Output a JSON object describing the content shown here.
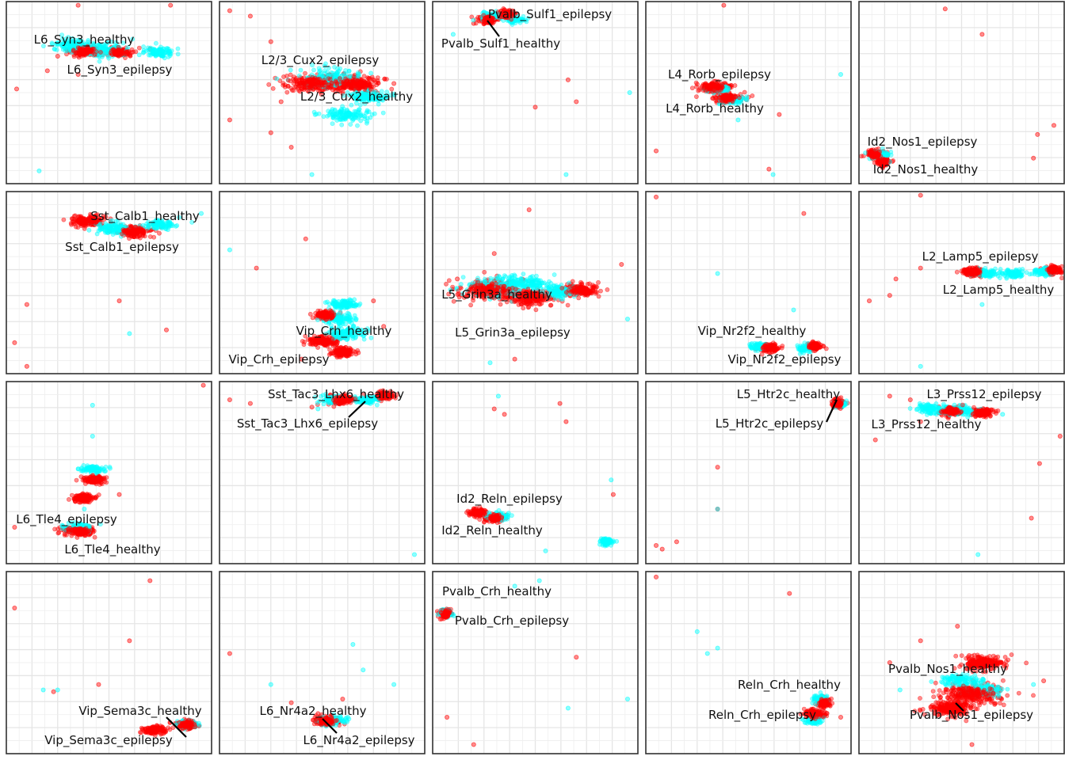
{
  "chart_data": {
    "type": "scatter",
    "layout": "4x5 facet grid, no axes text, light grid",
    "grid": true,
    "legend": "none",
    "colors": {
      "healthy": "#00ffff",
      "epilepsy": "#ff0000"
    },
    "panels": [
      {
        "labels": {
          "healthy": "L6_Syn3_healthy",
          "epilepsy": "L6_Syn3_epilepsy"
        },
        "healthy": [
          [
            0.32,
            0.76,
            0.08
          ],
          [
            0.48,
            0.74,
            0.1
          ],
          [
            0.75,
            0.72,
            0.06
          ],
          [
            0.16,
            0.07
          ]
        ],
        "epilepsy": [
          [
            0.38,
            0.73,
            0.07
          ],
          [
            0.55,
            0.72,
            0.06
          ],
          [
            0.2,
            0.62
          ],
          [
            0.35,
            0.6
          ],
          [
            0.8,
            0.98
          ],
          [
            0.35,
            0.98
          ],
          [
            0.05,
            0.52
          ],
          [
            0.7,
            0.74
          ],
          [
            0.25,
            0.7
          ]
        ]
      },
      {
        "labels": {
          "healthy": "L2/3_Cux2_healthy",
          "epilepsy": "L2/3_Cux2_epilepsy"
        },
        "healthy": [
          [
            0.55,
            0.58,
            0.12
          ],
          [
            0.72,
            0.48,
            0.08
          ],
          [
            0.62,
            0.38,
            0.1
          ],
          [
            0.45,
            0.05
          ]
        ],
        "epilepsy": [
          [
            0.45,
            0.55,
            0.12
          ],
          [
            0.65,
            0.55,
            0.12
          ],
          [
            0.3,
            0.45
          ],
          [
            0.25,
            0.28
          ],
          [
            0.05,
            0.35
          ],
          [
            0.35,
            0.2
          ],
          [
            0.05,
            0.95
          ],
          [
            0.15,
            0.92
          ],
          [
            0.85,
            0.55
          ],
          [
            0.25,
            0.78
          ]
        ]
      },
      {
        "labels": {
          "healthy": "Pvalb_Sulf1_healthy",
          "epilepsy": "Pvalb_Sulf1_epilepsy"
        },
        "healthy": [
          [
            0.3,
            0.92,
            0.05
          ],
          [
            0.4,
            0.9,
            0.04
          ],
          [
            0.96,
            0.5
          ],
          [
            0.65,
            0.05
          ],
          [
            0.1,
            0.82
          ]
        ],
        "epilepsy": [
          [
            0.27,
            0.9,
            0.04
          ],
          [
            0.36,
            0.93,
            0.04
          ],
          [
            0.5,
            0.42
          ],
          [
            0.7,
            0.45
          ],
          [
            0.66,
            0.57
          ],
          [
            0.2,
            0.88
          ]
        ]
      },
      {
        "labels": {
          "healthy": "L4_Rorb_healthy",
          "epilepsy": "L4_Rorb_epilepsy"
        },
        "healthy": [
          [
            0.35,
            0.52,
            0.05
          ],
          [
            0.42,
            0.46,
            0.05
          ],
          [
            0.95,
            0.6
          ],
          [
            0.62,
            0.05
          ],
          [
            0.45,
            0.35
          ]
        ],
        "epilepsy": [
          [
            0.33,
            0.53,
            0.07
          ],
          [
            0.4,
            0.47,
            0.06
          ],
          [
            0.38,
            0.98
          ],
          [
            0.6,
            0.08
          ],
          [
            0.05,
            0.18
          ],
          [
            0.65,
            0.38
          ]
        ]
      },
      {
        "labels": {
          "healthy": "Id2_Nos1_healthy",
          "epilepsy": "Id2_Nos1_epilepsy"
        },
        "healthy": [
          [
            0.1,
            0.16,
            0.04
          ],
          [
            0.15,
            0.12
          ]
        ],
        "epilepsy": [
          [
            0.08,
            0.16,
            0.04
          ],
          [
            0.12,
            0.12,
            0.03
          ],
          [
            0.42,
            0.96
          ],
          [
            0.6,
            0.82
          ],
          [
            0.95,
            0.32
          ],
          [
            0.87,
            0.27
          ],
          [
            0.85,
            0.14
          ]
        ]
      },
      {
        "labels": {
          "healthy": "Sst_Calb1_healthy",
          "epilepsy": "Sst_Calb1_epilepsy"
        },
        "healthy": [
          [
            0.52,
            0.8,
            0.08
          ],
          [
            0.75,
            0.82,
            0.06
          ],
          [
            0.95,
            0.88
          ],
          [
            0.6,
            0.22
          ]
        ],
        "epilepsy": [
          [
            0.4,
            0.84,
            0.08
          ],
          [
            0.62,
            0.78,
            0.07
          ],
          [
            0.55,
            0.4
          ],
          [
            0.78,
            0.24
          ],
          [
            0.1,
            0.38
          ],
          [
            0.04,
            0.17
          ],
          [
            0.1,
            0.04
          ],
          [
            0.35,
            0.84
          ]
        ]
      },
      {
        "labels": {
          "healthy": "Vip_Crh_healthy",
          "epilepsy": "Vip_Crh_epilepsy"
        },
        "healthy": [
          [
            0.62,
            0.22,
            0.08
          ],
          [
            0.58,
            0.3,
            0.07
          ],
          [
            0.6,
            0.38,
            0.06
          ],
          [
            0.05,
            0.68
          ]
        ],
        "epilepsy": [
          [
            0.5,
            0.18,
            0.07
          ],
          [
            0.6,
            0.12,
            0.05
          ],
          [
            0.52,
            0.32,
            0.05
          ],
          [
            0.42,
            0.74
          ],
          [
            0.18,
            0.58
          ],
          [
            0.8,
            0.26
          ],
          [
            0.4,
            0.08
          ],
          [
            0.75,
            0.4
          ]
        ]
      },
      {
        "labels": {
          "healthy": "L5_Grin3a_healthy",
          "epilepsy": "L5_Grin3a_epilepsy"
        },
        "healthy": [
          [
            0.3,
            0.48,
            0.12
          ],
          [
            0.45,
            0.5,
            0.1
          ],
          [
            0.62,
            0.45,
            0.08
          ],
          [
            0.95,
            0.3
          ],
          [
            0.28,
            0.06
          ]
        ],
        "epilepsy": [
          [
            0.28,
            0.46,
            0.14
          ],
          [
            0.48,
            0.42,
            0.12
          ],
          [
            0.72,
            0.46,
            0.08
          ],
          [
            0.3,
            0.66
          ],
          [
            0.47,
            0.9
          ],
          [
            0.92,
            0.6
          ],
          [
            0.4,
            0.08
          ],
          [
            0.12,
            0.52
          ]
        ]
      },
      {
        "labels": {
          "healthy": "Vip_Nr2f2_healthy",
          "epilepsy": "Vip_Nr2f2_epilepsy"
        },
        "healthy": [
          [
            0.55,
            0.15,
            0.04
          ],
          [
            0.78,
            0.14,
            0.03
          ],
          [
            0.35,
            0.55
          ],
          [
            0.72,
            0.35
          ]
        ],
        "epilepsy": [
          [
            0.6,
            0.14,
            0.04
          ],
          [
            0.82,
            0.15,
            0.03
          ],
          [
            0.77,
            0.88
          ],
          [
            0.05,
            0.97
          ]
        ]
      },
      {
        "labels": {
          "healthy": "L2_Lamp5_healthy",
          "epilepsy": "L2_Lamp5_epilepsy"
        },
        "healthy": [
          [
            0.62,
            0.55,
            0.05
          ],
          [
            0.75,
            0.55,
            0.05
          ],
          [
            0.9,
            0.56,
            0.04
          ],
          [
            0.6,
            0.38
          ],
          [
            0.3,
            0.04
          ]
        ],
        "epilepsy": [
          [
            0.55,
            0.56,
            0.05
          ],
          [
            0.95,
            0.57,
            0.04
          ],
          [
            0.3,
            0.58
          ],
          [
            0.18,
            0.52
          ],
          [
            0.05,
            0.4
          ],
          [
            0.15,
            0.43
          ],
          [
            0.3,
            0.98
          ]
        ]
      },
      {
        "labels": {
          "healthy": "L6_Tle4_healthy",
          "epilepsy": "L6_Tle4_epilepsy"
        },
        "healthy": [
          [
            0.35,
            0.2,
            0.06
          ],
          [
            0.42,
            0.52,
            0.05
          ],
          [
            0.42,
            0.7
          ],
          [
            0.42,
            0.87
          ],
          [
            0.38,
            0.3
          ]
        ],
        "epilepsy": [
          [
            0.35,
            0.18,
            0.07
          ],
          [
            0.38,
            0.36,
            0.05
          ],
          [
            0.43,
            0.46,
            0.05
          ],
          [
            0.96,
            0.98
          ],
          [
            0.55,
            0.38
          ],
          [
            0.04,
            0.2
          ]
        ]
      },
      {
        "labels": {
          "healthy": "Sst_Tac3_Lhx6_healthy",
          "epilepsy": "Sst_Tac3_Lhx6_epilepsy"
        },
        "healthy": [
          [
            0.55,
            0.9,
            0.05
          ],
          [
            0.72,
            0.9,
            0.05
          ],
          [
            0.48,
            0.85
          ],
          [
            0.95,
            0.05
          ]
        ],
        "epilepsy": [
          [
            0.6,
            0.9,
            0.06
          ],
          [
            0.8,
            0.92,
            0.04
          ],
          [
            0.15,
            0.88
          ],
          [
            0.05,
            0.9
          ],
          [
            0.45,
            0.86
          ]
        ]
      },
      {
        "labels": {
          "healthy": "Id2_Reln_healthy",
          "epilepsy": "Id2_Reln_epilepsy"
        },
        "healthy": [
          [
            0.32,
            0.26,
            0.05
          ],
          [
            0.85,
            0.12,
            0.03
          ],
          [
            0.55,
            0.07
          ],
          [
            0.32,
            0.92
          ],
          [
            0.87,
            0.46
          ]
        ],
        "epilepsy": [
          [
            0.22,
            0.28,
            0.04
          ],
          [
            0.3,
            0.25,
            0.04
          ],
          [
            0.3,
            0.85
          ],
          [
            0.62,
            0.88
          ],
          [
            0.65,
            0.78
          ],
          [
            0.35,
            0.82
          ],
          [
            0.88,
            0.38
          ]
        ]
      },
      {
        "labels": {
          "healthy": "L5_Htr2c_healthy",
          "epilepsy": "L5_Htr2c_epilepsy"
        },
        "healthy": [
          [
            0.95,
            0.88,
            0.02
          ],
          [
            0.35,
            0.3
          ]
        ],
        "epilepsy": [
          [
            0.94,
            0.88,
            0.03
          ],
          [
            0.35,
            0.53
          ],
          [
            0.35,
            0.3
          ],
          [
            0.15,
            0.12
          ],
          [
            0.08,
            0.08
          ],
          [
            0.05,
            0.1
          ]
        ]
      },
      {
        "labels": {
          "healthy": "L3_Prss12_healthy",
          "epilepsy": "L3_Prss12_epilepsy"
        },
        "healthy": [
          [
            0.35,
            0.85,
            0.06
          ],
          [
            0.5,
            0.84,
            0.06
          ],
          [
            0.7,
            0.82
          ],
          [
            0.58,
            0.05
          ]
        ],
        "epilepsy": [
          [
            0.45,
            0.84,
            0.06
          ],
          [
            0.6,
            0.83,
            0.05
          ],
          [
            0.15,
            0.92
          ],
          [
            0.08,
            0.68
          ],
          [
            0.25,
            0.9
          ],
          [
            0.98,
            0.7
          ],
          [
            0.88,
            0.55
          ],
          [
            0.3,
            0.78
          ],
          [
            0.84,
            0.25
          ]
        ]
      },
      {
        "labels": {
          "healthy": "Vip_Sema3c_healthy",
          "epilepsy": "Vip_Sema3c_epilepsy"
        },
        "healthy": [
          [
            0.88,
            0.16,
            0.04
          ],
          [
            0.18,
            0.35
          ],
          [
            0.25,
            0.35
          ]
        ],
        "epilepsy": [
          [
            0.88,
            0.16,
            0.05
          ],
          [
            0.72,
            0.13,
            0.05
          ],
          [
            0.7,
            0.95
          ],
          [
            0.6,
            0.62
          ],
          [
            0.45,
            0.38
          ],
          [
            0.04,
            0.8
          ],
          [
            0.23,
            0.34
          ]
        ]
      },
      {
        "labels": {
          "healthy": "L6_Nr4a2_healthy",
          "epilepsy": "L6_Nr4a2_epilepsy"
        },
        "healthy": [
          [
            0.55,
            0.18,
            0.06
          ],
          [
            0.7,
            0.46
          ],
          [
            0.65,
            0.6
          ],
          [
            0.25,
            0.38
          ],
          [
            0.85,
            0.38
          ]
        ],
        "epilepsy": [
          [
            0.52,
            0.18,
            0.06
          ],
          [
            0.35,
            0.28
          ],
          [
            0.6,
            0.3
          ],
          [
            0.05,
            0.55
          ],
          [
            0.48,
            0.22
          ]
        ]
      },
      {
        "labels": {
          "healthy": "Pvalb_Crh_healthy",
          "epilepsy": "Pvalb_Crh_epilepsy"
        },
        "healthy": [
          [
            0.06,
            0.77,
            0.03
          ],
          [
            0.52,
            0.95
          ],
          [
            0.95,
            0.3
          ],
          [
            0.66,
            0.25
          ],
          [
            0.4,
            0.92
          ]
        ],
        "epilepsy": [
          [
            0.06,
            0.77,
            0.03
          ],
          [
            0.7,
            0.53
          ],
          [
            0.07,
            0.2
          ],
          [
            0.2,
            0.05
          ]
        ]
      },
      {
        "labels": {
          "healthy": "Reln_Crh_healthy",
          "epilepsy": "Reln_Crh_epilepsy"
        },
        "healthy": [
          [
            0.82,
            0.18,
            0.04
          ],
          [
            0.85,
            0.3,
            0.03
          ],
          [
            0.25,
            0.67
          ],
          [
            0.35,
            0.58
          ],
          [
            0.3,
            0.55
          ]
        ],
        "epilepsy": [
          [
            0.82,
            0.22,
            0.05
          ],
          [
            0.87,
            0.28,
            0.03
          ],
          [
            0.7,
            0.88
          ],
          [
            0.05,
            0.97
          ],
          [
            0.95,
            0.2
          ]
        ]
      },
      {
        "labels": {
          "healthy": "Pvalb_Nos1_healthy",
          "epilepsy": "Pvalb_Nos1_epilepsy"
        },
        "healthy": [
          [
            0.5,
            0.4,
            0.08
          ],
          [
            0.62,
            0.35,
            0.07
          ],
          [
            0.85,
            0.38
          ],
          [
            0.2,
            0.35
          ]
        ],
        "epilepsy": [
          [
            0.55,
            0.33,
            0.14
          ],
          [
            0.45,
            0.25,
            0.1
          ],
          [
            0.6,
            0.5,
            0.1
          ],
          [
            0.3,
            0.62
          ],
          [
            0.48,
            0.7
          ],
          [
            0.15,
            0.5
          ],
          [
            0.9,
            0.4
          ],
          [
            0.55,
            0.05
          ]
        ]
      }
    ]
  }
}
